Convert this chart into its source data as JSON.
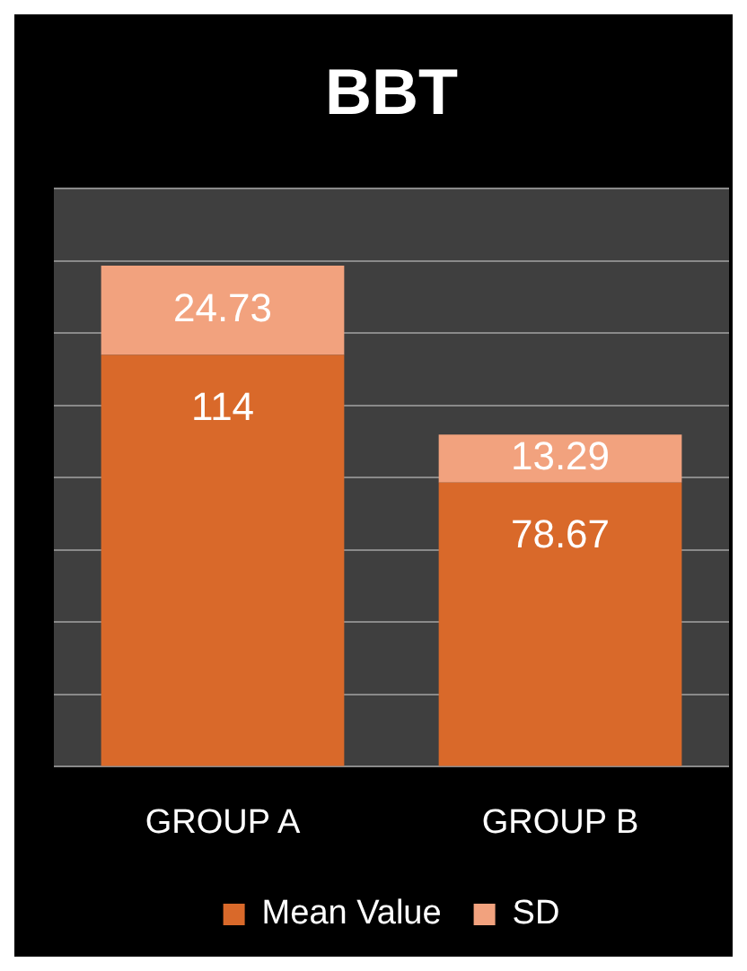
{
  "chart_data": {
    "type": "bar",
    "title": "BBT",
    "categories": [
      "GROUP A",
      "GROUP B"
    ],
    "series": [
      {
        "name": "Mean Value",
        "color": "#d9692a",
        "values": [
          114,
          78.67
        ]
      },
      {
        "name": "SD",
        "color": "#f2a27e",
        "values": [
          24.73,
          13.29
        ]
      }
    ],
    "stacked": true,
    "ylim": [
      0,
      160
    ],
    "yticks": [
      {
        "value": 0,
        "label": null
      },
      {
        "value": 20,
        "label": null
      },
      {
        "value": 40,
        "label": null
      },
      {
        "value": 60,
        "label": null
      },
      {
        "value": 80,
        "label": null
      },
      {
        "value": 100,
        "label": null
      },
      {
        "value": 120,
        "label": null
      },
      {
        "value": 140,
        "label": null
      },
      {
        "value": 160,
        "label": null
      }
    ],
    "tick_labels": "x",
    "grid": "y",
    "legend": "bottom",
    "data_labels": true
  }
}
